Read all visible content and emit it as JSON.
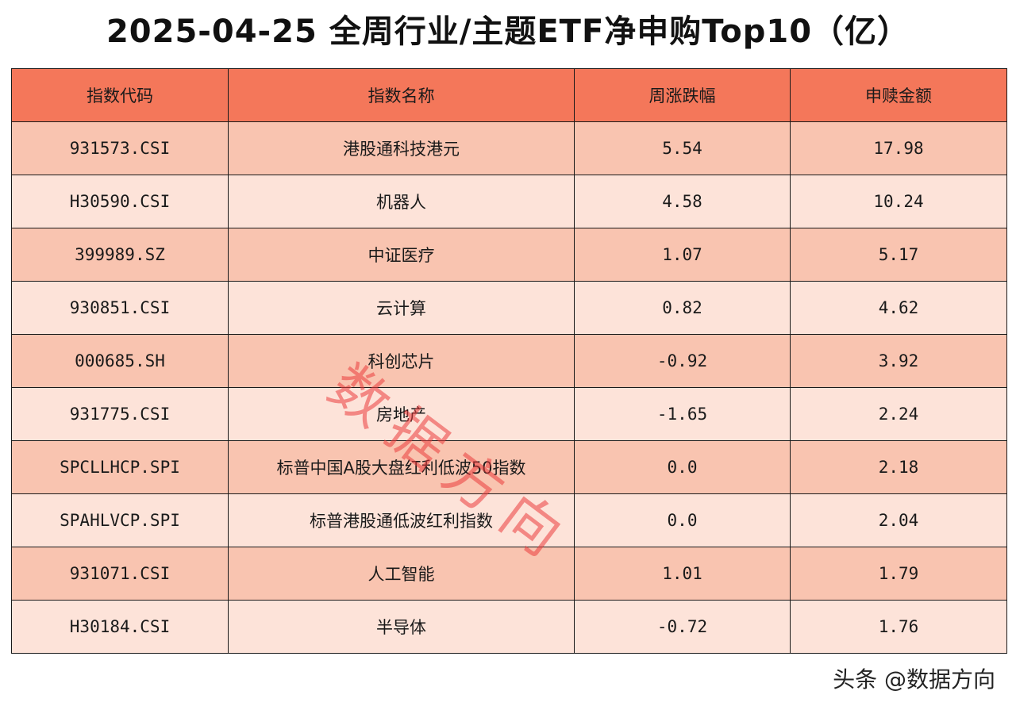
{
  "title": "2025-04-25 全周行业/主题ETF净申购Top10（亿）",
  "table": {
    "headers": [
      "指数代码",
      "指数名称",
      "周涨跌幅",
      "申赎金额"
    ],
    "rows": [
      [
        "931573.CSI",
        "港股通科技港元",
        "5.54",
        "17.98"
      ],
      [
        "H30590.CSI",
        "机器人",
        "4.58",
        "10.24"
      ],
      [
        "399989.SZ",
        "中证医疗",
        "1.07",
        "5.17"
      ],
      [
        "930851.CSI",
        "云计算",
        "0.82",
        "4.62"
      ],
      [
        "000685.SH",
        "科创芯片",
        "-0.92",
        "3.92"
      ],
      [
        "931775.CSI",
        "房地产",
        "-1.65",
        "2.24"
      ],
      [
        "SPCLLHCP.SPI",
        "标普中国A股大盘红利低波50指数",
        "0.0",
        "2.18"
      ],
      [
        "SPAHLVCP.SPI",
        "标普港股通低波红利指数",
        "0.0",
        "2.04"
      ],
      [
        "931071.CSI",
        "人工智能",
        "1.01",
        "1.79"
      ],
      [
        "H30184.CSI",
        "半导体",
        "-0.72",
        "1.76"
      ]
    ]
  },
  "watermark": "数据方向",
  "footer": "头条 @数据方向",
  "colors": {
    "header_bg": "#f4775a",
    "row_odd_bg": "#f9c4b0",
    "row_even_bg": "#fde3d9",
    "watermark": "#eb3c3c"
  }
}
